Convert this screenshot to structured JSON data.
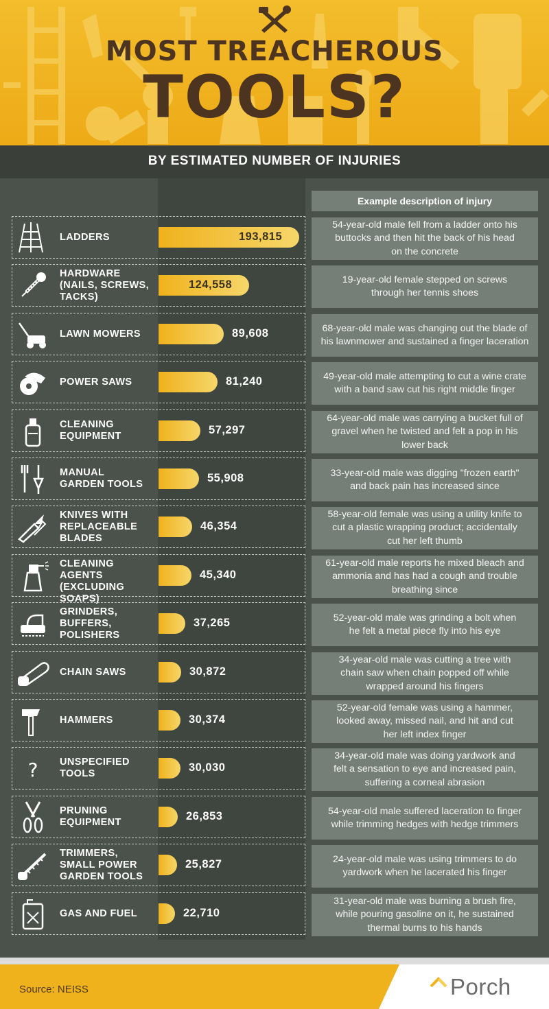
{
  "header": {
    "title_line1": "MOST TREACHEROUS",
    "title_line2": "TOOLS?",
    "subtitle": "BY ESTIMATED NUMBER OF INJURIES"
  },
  "column_header": "Example description of injury",
  "colors": {
    "accent": "#f0b21c",
    "background": "#4b524b",
    "panel": "#767f77",
    "title_text": "#4d3420"
  },
  "chart_data": {
    "type": "bar",
    "orientation": "horizontal",
    "title": "MOST TREACHEROUS TOOLS?",
    "subtitle": "BY ESTIMATED NUMBER OF INJURIES",
    "categories": [
      "LADDERS",
      "HARDWARE (NAILS, SCREWS, TACKS)",
      "LAWN MOWERS",
      "POWER SAWS",
      "CLEANING EQUIPMENT",
      "MANUAL GARDEN TOOLS",
      "KNIVES WITH REPLACEABLE BLADES",
      "CLEANING AGENTS (EXCLUDING SOAPS)",
      "GRINDERS, BUFFERS, POLISHERS",
      "CHAIN SAWS",
      "HAMMERS",
      "UNSPECIFIED TOOLS",
      "PRUNING EQUIPMENT",
      "TRIMMERS, SMALL POWER GARDEN TOOLS",
      "GAS AND FUEL"
    ],
    "values": [
      193815,
      124558,
      89608,
      81240,
      57297,
      55908,
      46354,
      45340,
      37265,
      30872,
      30374,
      30030,
      26853,
      25827,
      22710
    ],
    "max_value": 193815
  },
  "rows": [
    {
      "label": [
        "LADDERS"
      ],
      "value": "193,815",
      "icon": "ladder-icon",
      "desc": [
        "54-year-old male fell from a ladder onto his",
        "buttocks and then hit the back of his head",
        "on the concrete"
      ]
    },
    {
      "label": [
        "HARDWARE",
        "(NAILS, SCREWS,",
        "TACKS)"
      ],
      "value": "124,558",
      "icon": "screw-icon",
      "desc": [
        "19-year-old female stepped on screws",
        "through her tennis shoes"
      ]
    },
    {
      "label": [
        "LAWN MOWERS"
      ],
      "value": "89,608",
      "icon": "lawn-mower-icon",
      "desc": [
        "68-year-old male was changing out the blade of",
        "his lawnmower and sustained a finger laceration"
      ]
    },
    {
      "label": [
        "POWER SAWS"
      ],
      "value": "81,240",
      "icon": "power-saw-icon",
      "desc": [
        "49-year-old male attempting to cut a wine crate",
        "with a band saw cut his right middle finger"
      ]
    },
    {
      "label": [
        "CLEANING",
        "EQUIPMENT"
      ],
      "value": "57,297",
      "icon": "cleaning-bottle-icon",
      "desc": [
        "64-year-old male was carrying a bucket full of",
        "gravel when he twisted and felt a pop in his",
        "lower back"
      ]
    },
    {
      "label": [
        "MANUAL",
        "GARDEN TOOLS"
      ],
      "value": "55,908",
      "icon": "garden-tools-icon",
      "desc": [
        "33-year-old male was digging \"frozen earth\"",
        "and back pain has increased since"
      ]
    },
    {
      "label": [
        "KNIVES WITH",
        "REPLACEABLE",
        "BLADES"
      ],
      "value": "46,354",
      "icon": "utility-knife-icon",
      "desc": [
        "58-year-old female was using a utility knife to",
        "cut a plastic wrapping product; accidentally",
        "cut her left thumb"
      ]
    },
    {
      "label": [
        "CLEANING AGENTS",
        "(EXCLUDING",
        "SOAPS)"
      ],
      "value": "45,340",
      "icon": "spray-bottle-icon",
      "desc": [
        "61-year-old male reports he mixed bleach and",
        "ammonia and has had a cough and trouble",
        "breathing since"
      ]
    },
    {
      "label": [
        "GRINDERS,",
        "BUFFERS,",
        "POLISHERS"
      ],
      "value": "37,265",
      "icon": "sander-icon",
      "desc": [
        "52-year-old male was grinding a bolt when",
        "he felt a metal piece fly into his eye"
      ]
    },
    {
      "label": [
        "CHAIN SAWS"
      ],
      "value": "30,872",
      "icon": "chainsaw-icon",
      "desc": [
        "34-year-old male was cutting a tree with",
        "chain saw when chain popped off while",
        "wrapped around his fingers"
      ]
    },
    {
      "label": [
        "HAMMERS"
      ],
      "value": "30,374",
      "icon": "hammer-icon",
      "desc": [
        "52-year-old female was using a hammer,",
        "looked away, missed nail, and hit and cut",
        "her left index finger"
      ]
    },
    {
      "label": [
        "UNSPECIFIED",
        "TOOLS"
      ],
      "value": "30,030",
      "icon": "question-mark-icon",
      "desc": [
        "34-year-old male was doing yardwork and",
        "felt a sensation to eye and increased pain,",
        "suffering a corneal abrasion"
      ]
    },
    {
      "label": [
        "PRUNING",
        "EQUIPMENT"
      ],
      "value": "26,853",
      "icon": "pruning-shears-icon",
      "desc": [
        "54-year-old male suffered laceration to finger",
        "while trimming hedges with hedge trimmers"
      ]
    },
    {
      "label": [
        "TRIMMERS,",
        "SMALL POWER",
        "GARDEN TOOLS"
      ],
      "value": "25,827",
      "icon": "hedge-trimmer-icon",
      "desc": [
        "24-year-old male was using trimmers to do",
        "yardwork when he lacerated his finger"
      ]
    },
    {
      "label": [
        "GAS AND FUEL"
      ],
      "value": "22,710",
      "icon": "gas-can-icon",
      "desc": [
        "31-year-old male was burning a brush fire,",
        "while pouring gasoline on it, he sustained",
        "thermal burns to his hands"
      ]
    }
  ],
  "footer": {
    "source": "Source: NEISS",
    "brand": "Porch"
  }
}
